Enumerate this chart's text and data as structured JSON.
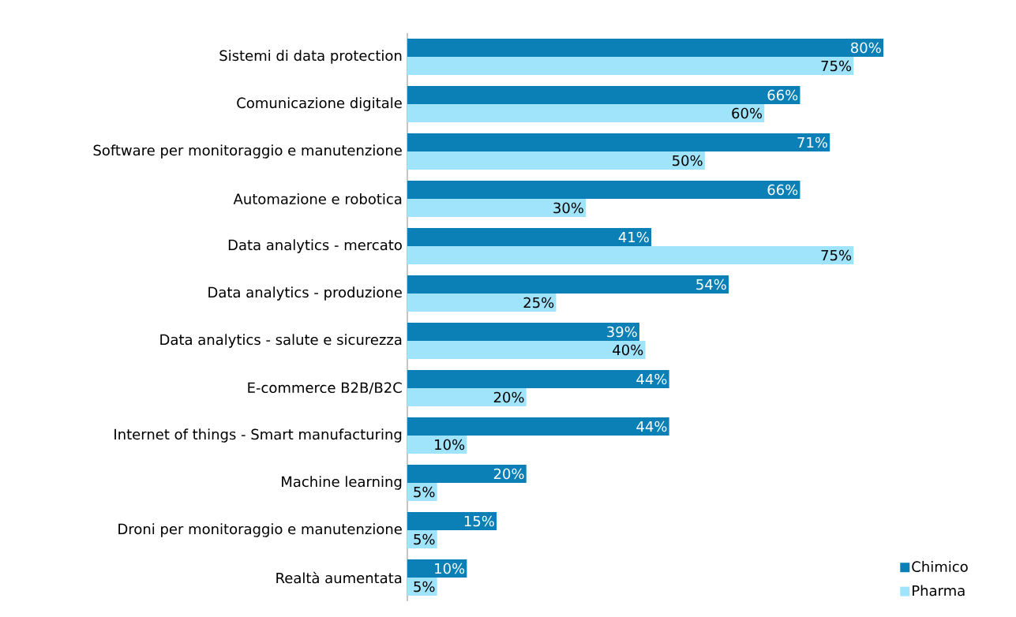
{
  "chart_data": {
    "type": "bar",
    "orientation": "horizontal",
    "categories": [
      "Sistemi di data protection",
      "Comunicazione digitale",
      "Software per monitoraggio e manutenzione",
      "Automazione e robotica",
      "Data analytics - mercato",
      "Data analytics - produzione",
      "Data analytics - salute e sicurezza",
      "E-commerce B2B/B2C",
      "Internet of things - Smart manufacturing",
      "Machine learning",
      "Droni per monitoraggio e manutenzione",
      "Realtà aumentata"
    ],
    "series": [
      {
        "name": "Chimico",
        "color": "#0a80b6",
        "values": [
          80,
          66,
          71,
          66,
          41,
          54,
          39,
          44,
          44,
          20,
          15,
          10
        ],
        "value_labels": [
          "80%",
          "66%",
          "71%",
          "66%",
          "41%",
          "54%",
          "39%",
          "44%",
          "44%",
          "20%",
          "15%",
          "10%"
        ]
      },
      {
        "name": "Pharma",
        "color": "#a0e4fb",
        "values": [
          75,
          60,
          50,
          30,
          75,
          25,
          40,
          20,
          10,
          5,
          5,
          5
        ],
        "value_labels": [
          "75%",
          "60%",
          "50%",
          "30%",
          "75%",
          "25%",
          "40%",
          "20%",
          "10%",
          "5%",
          "5%",
          "5%"
        ]
      }
    ],
    "tick_labels": "y",
    "legend": "bottom right"
  }
}
